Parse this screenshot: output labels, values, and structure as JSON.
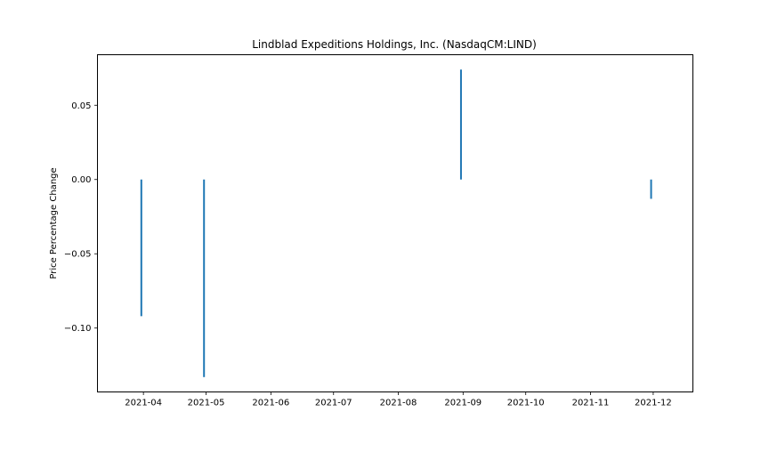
{
  "chart_data": {
    "type": "bar",
    "title": "Lindblad Expeditions Holdings, Inc. (NasdaqCM:LIND)",
    "xlabel": "",
    "ylabel": "Price Percentage Change",
    "x_axis_type": "date",
    "xlim": [
      "2021-03-10",
      "2021-12-20"
    ],
    "ylim": [
      -0.143,
      0.084
    ],
    "grid": false,
    "legend": "none",
    "x_ticks": [
      "2021-04-01",
      "2021-05-01",
      "2021-06-01",
      "2021-07-01",
      "2021-08-01",
      "2021-09-01",
      "2021-10-01",
      "2021-11-01",
      "2021-12-01"
    ],
    "x_tick_labels": [
      "2021-04",
      "2021-05",
      "2021-06",
      "2021-07",
      "2021-08",
      "2021-09",
      "2021-10",
      "2021-11",
      "2021-12"
    ],
    "y_ticks": [
      -0.1,
      -0.05,
      0.0,
      0.05
    ],
    "y_tick_labels": [
      "−0.10",
      "−0.05",
      "0.00",
      "0.05"
    ],
    "series": [
      {
        "x": [
          "2021-03-31",
          "2021-04-30",
          "2021-08-31",
          "2021-11-30"
        ],
        "values": [
          -0.092,
          -0.133,
          0.074,
          -0.013
        ],
        "color": "#1f77b4"
      }
    ]
  }
}
